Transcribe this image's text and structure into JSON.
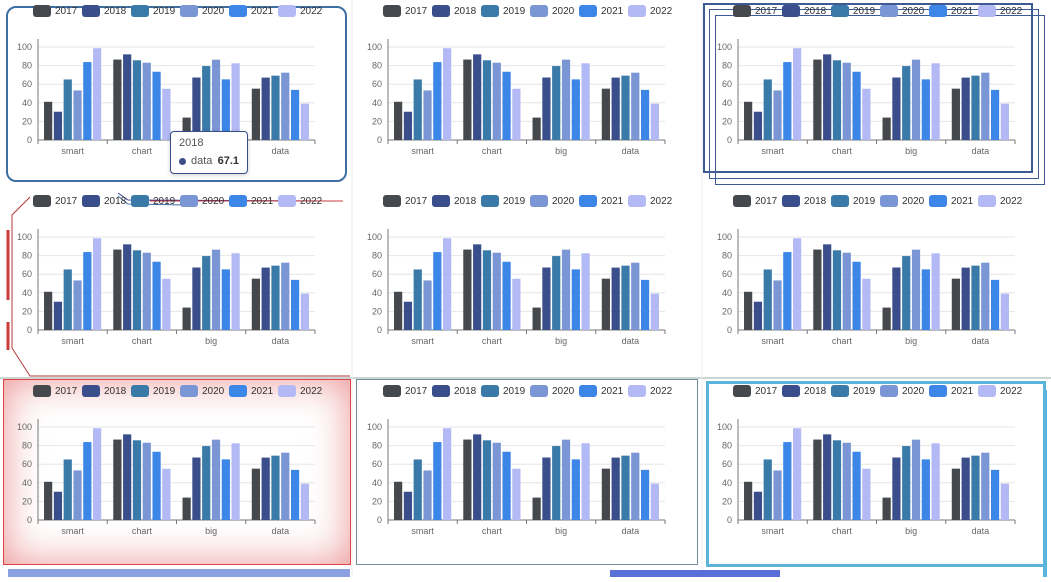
{
  "legend": [
    "2017",
    "2018",
    "2019",
    "2020",
    "2021",
    "2022"
  ],
  "colors": [
    "#45494d",
    "#3b4e8c",
    "#3a7aa8",
    "#7b96d4",
    "#3b86e6",
    "#b3b9f5"
  ],
  "tooltip": {
    "title": "2018",
    "series_label": "data",
    "value": "67.1"
  },
  "chart_data": {
    "type": "bar",
    "categories": [
      "smart",
      "chart",
      "big",
      "data"
    ],
    "series": [
      {
        "name": "2017",
        "values": [
          41.1,
          86.5,
          24.1,
          55.2
        ]
      },
      {
        "name": "2018",
        "values": [
          30.4,
          92.1,
          67.2,
          67.1
        ]
      },
      {
        "name": "2019",
        "values": [
          65.1,
          85.7,
          79.5,
          69.2
        ]
      },
      {
        "name": "2020",
        "values": [
          53.3,
          83.1,
          86.4,
          72.4
        ]
      },
      {
        "name": "2021",
        "values": [
          83.8,
          73.4,
          65.2,
          53.9
        ]
      },
      {
        "name": "2022",
        "values": [
          98.7,
          55.1,
          82.5,
          39.1
        ]
      }
    ],
    "ylim": [
      0,
      100
    ],
    "yticks": [
      0,
      20,
      40,
      60,
      80,
      100
    ]
  }
}
